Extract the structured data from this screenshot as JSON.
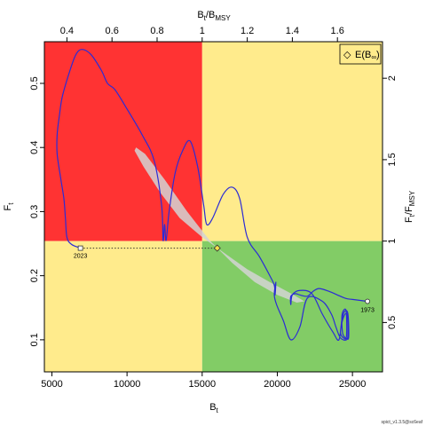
{
  "chart_data": {
    "type": "line",
    "x_axis": {
      "label_main": "B",
      "label_sub": "t",
      "range": [
        4500,
        27000
      ],
      "ticks": [
        5000,
        10000,
        15000,
        20000,
        25000
      ]
    },
    "y_axis": {
      "label_main": "F",
      "label_sub": "t",
      "range": [
        0.05,
        0.565
      ],
      "ticks": [
        0.1,
        0.2,
        0.3,
        0.4,
        0.5
      ]
    },
    "top_axis": {
      "label_main": "B",
      "label_sub": "t",
      "label_sep": "/",
      "label_main2": "B",
      "label_sub2": "MSY",
      "ticks": [
        0.4,
        0.6,
        0.8,
        1,
        1.2,
        1.4,
        1.6
      ],
      "tick_labels": [
        "0.4",
        "0.6",
        "0.8",
        "1",
        "1.2",
        "1.4",
        "1.6"
      ]
    },
    "right_axis": {
      "label_main": "F",
      "label_sub": "t",
      "label_sep": "/",
      "label_main2": "F",
      "label_sub2": "MSY",
      "ticks": [
        0.5,
        1,
        1.5,
        2
      ],
      "tick_labels": [
        "0.5",
        "1",
        "1.5",
        "2"
      ]
    },
    "reference": {
      "Bmsy": 15000,
      "Fmsy": 0.254
    },
    "quadrant_colors": {
      "red": "#ff3333",
      "yellow": "#ffeb8c",
      "green": "#82cc66"
    },
    "trajectory_color": "#2b2bd6",
    "ellipse_color": "#d3d3d3",
    "trajectory": [
      [
        26000,
        0.16
      ],
      [
        25000,
        0.163
      ],
      [
        24500,
        0.165
      ],
      [
        23500,
        0.175
      ],
      [
        22800,
        0.18
      ],
      [
        22400,
        0.176
      ],
      [
        22000,
        0.168
      ],
      [
        21500,
        0.17
      ],
      [
        21200,
        0.172
      ],
      [
        20900,
        0.168
      ],
      [
        20900,
        0.155
      ],
      [
        21000,
        0.17
      ],
      [
        21500,
        0.177
      ],
      [
        22300,
        0.172
      ],
      [
        23000,
        0.14
      ],
      [
        23700,
        0.112
      ],
      [
        24100,
        0.1
      ],
      [
        24300,
        0.132
      ],
      [
        24500,
        0.145
      ],
      [
        24700,
        0.14
      ],
      [
        24750,
        0.105
      ],
      [
        24600,
        0.102
      ],
      [
        24350,
        0.11
      ],
      [
        24300,
        0.138
      ],
      [
        24500,
        0.148
      ],
      [
        24600,
        0.14
      ],
      [
        24600,
        0.105
      ],
      [
        24400,
        0.103
      ],
      [
        24200,
        0.112
      ],
      [
        24400,
        0.135
      ],
      [
        24650,
        0.14
      ],
      [
        24700,
        0.11
      ],
      [
        24600,
        0.1
      ],
      [
        24200,
        0.103
      ],
      [
        23900,
        0.12
      ],
      [
        23600,
        0.14
      ],
      [
        23000,
        0.16
      ],
      [
        22000,
        0.165
      ],
      [
        21500,
        0.12
      ],
      [
        20900,
        0.1
      ],
      [
        20400,
        0.13
      ],
      [
        19950,
        0.155
      ],
      [
        19800,
        0.17
      ],
      [
        19900,
        0.19
      ],
      [
        19850,
        0.17
      ],
      [
        19800,
        0.185
      ],
      [
        19500,
        0.2
      ],
      [
        18800,
        0.23
      ],
      [
        18000,
        0.26
      ],
      [
        17500,
        0.32
      ],
      [
        17000,
        0.338
      ],
      [
        16400,
        0.327
      ],
      [
        15700,
        0.29
      ],
      [
        15300,
        0.28
      ],
      [
        15100,
        0.31
      ],
      [
        14700,
        0.37
      ],
      [
        14200,
        0.41
      ],
      [
        13700,
        0.395
      ],
      [
        13200,
        0.36
      ],
      [
        12800,
        0.3
      ],
      [
        12600,
        0.255
      ],
      [
        12500,
        0.28
      ],
      [
        12400,
        0.255
      ],
      [
        12300,
        0.31
      ],
      [
        11800,
        0.38
      ],
      [
        11000,
        0.42
      ],
      [
        10000,
        0.46
      ],
      [
        9200,
        0.49
      ],
      [
        8700,
        0.5
      ],
      [
        8300,
        0.52
      ],
      [
        7600,
        0.545
      ],
      [
        7000,
        0.553
      ],
      [
        6600,
        0.545
      ],
      [
        6200,
        0.52
      ],
      [
        5700,
        0.48
      ],
      [
        5500,
        0.45
      ],
      [
        5350,
        0.42
      ],
      [
        5350,
        0.39
      ],
      [
        5600,
        0.35
      ],
      [
        5800,
        0.32
      ],
      [
        5900,
        0.29
      ],
      [
        6000,
        0.26
      ],
      [
        6300,
        0.249
      ],
      [
        6900,
        0.243
      ]
    ],
    "projection": {
      "from": [
        6900,
        0.243
      ],
      "to": [
        16000,
        0.243
      ]
    },
    "ellipse": {
      "center": [
        16000,
        0.243
      ],
      "path_points": [
        [
          10600,
          0.4
        ],
        [
          11200,
          0.39
        ],
        [
          12500,
          0.35
        ],
        [
          14000,
          0.3
        ],
        [
          15500,
          0.255
        ],
        [
          17000,
          0.22
        ],
        [
          18500,
          0.19
        ],
        [
          20000,
          0.17
        ],
        [
          21300,
          0.158
        ],
        [
          21800,
          0.16
        ],
        [
          21100,
          0.17
        ],
        [
          19500,
          0.19
        ],
        [
          18000,
          0.21
        ],
        [
          16500,
          0.235
        ],
        [
          15000,
          0.26
        ],
        [
          13500,
          0.29
        ],
        [
          12200,
          0.33
        ],
        [
          11100,
          0.37
        ],
        [
          10500,
          0.395
        ]
      ]
    },
    "start_marker": {
      "x": 26000,
      "y": 0.16,
      "label": "1973"
    },
    "end_marker": {
      "x": 6900,
      "y": 0.243,
      "label": "2023"
    },
    "equilibrium_marker": {
      "x": 16000,
      "y": 0.243
    },
    "legend": {
      "position": "top-right",
      "symbol": "◇",
      "text_main": "E(B",
      "text_sub": "∞",
      "text_end": ")"
    },
    "footer": "spict_v1.3.5@sc6eaf"
  }
}
